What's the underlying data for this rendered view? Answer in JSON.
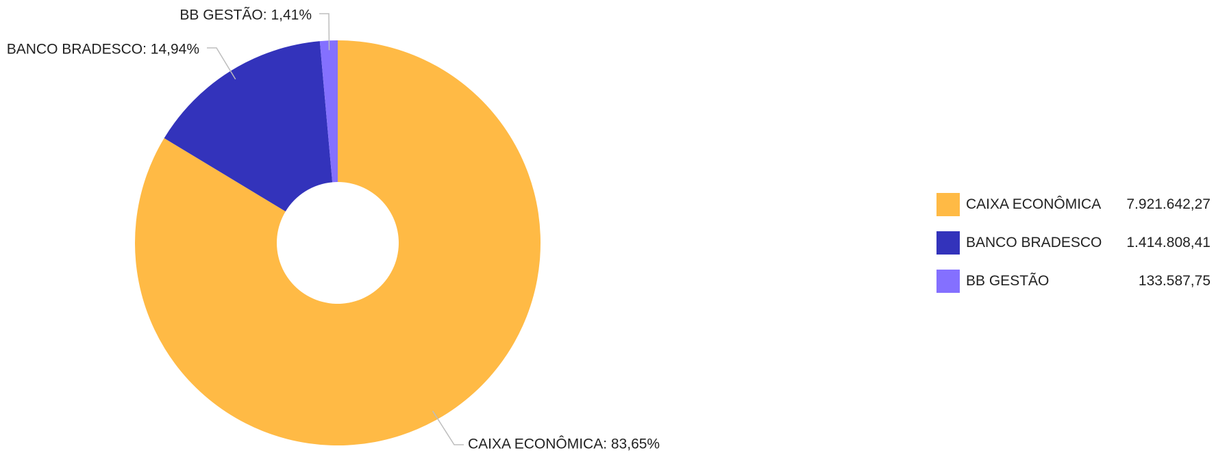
{
  "chart_data": {
    "type": "pie",
    "donut": true,
    "legend_position": "right",
    "slices": [
      {
        "label": "CAIXA ECONÔMICA",
        "value": 7921642.27,
        "value_text": "7.921.642,27",
        "percent": 83.65,
        "percent_text": "CAIXA ECONÔMICA: 83,65%",
        "color": "#FFBA45"
      },
      {
        "label": "BANCO BRADESCO",
        "value": 1414808.41,
        "value_text": "1.414.808,41",
        "percent": 14.94,
        "percent_text": "BANCO BRADESCO: 14,94%",
        "color": "#3333BB"
      },
      {
        "label": "BB GESTÃO",
        "value": 133587.75,
        "value_text": "133.587,75",
        "percent": 1.41,
        "percent_text": "BB GESTÃO: 1,41%",
        "color": "#8470FF"
      }
    ]
  }
}
